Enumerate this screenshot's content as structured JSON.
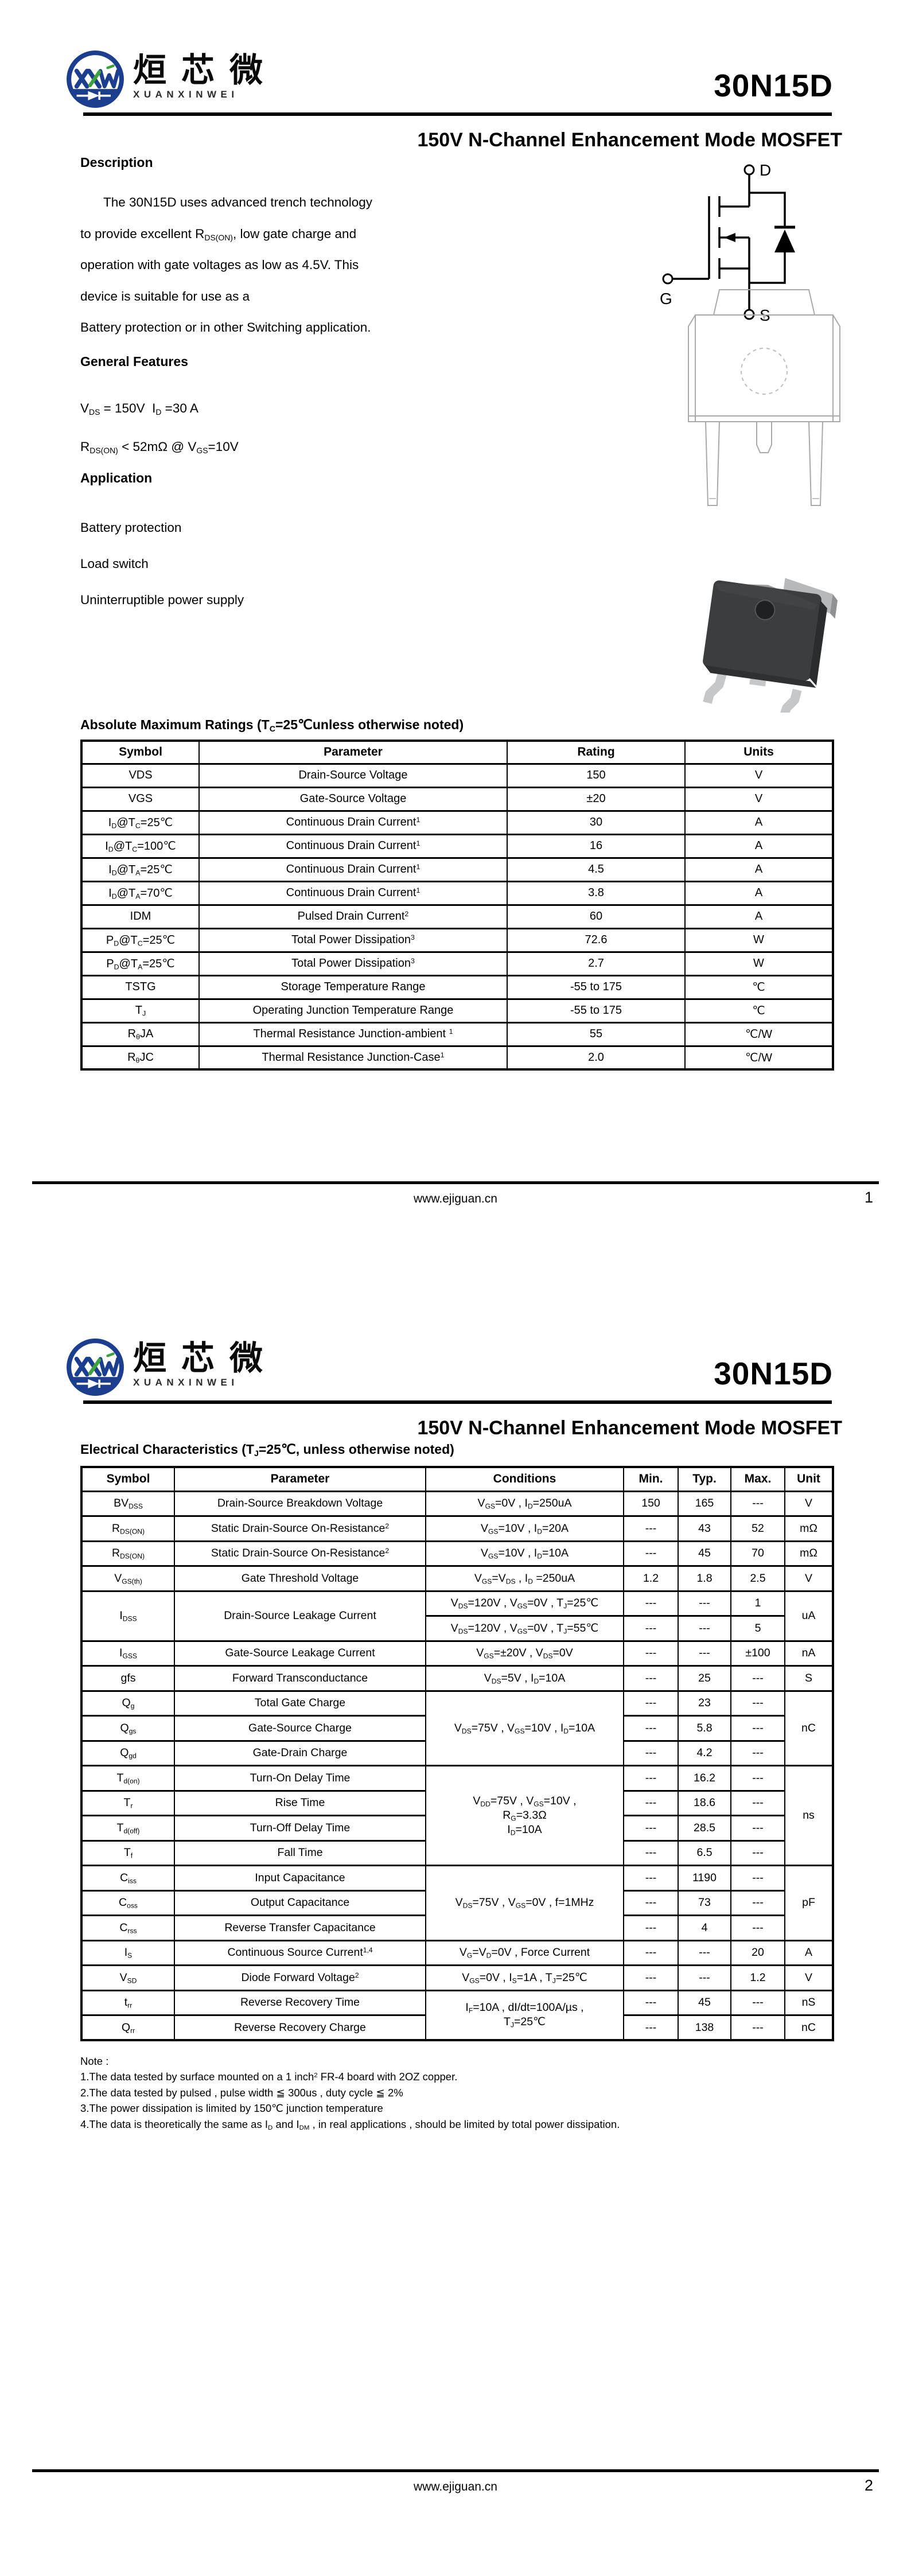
{
  "brand": {
    "logo_monogram": "XXW",
    "logo_zh": "烜芯微",
    "logo_en": "XUANXINWEI",
    "logo_blue": "#1c3e8e",
    "logo_green": "#3da23d"
  },
  "doc": {
    "part_number": "30N15D",
    "subtitle": "150V N-Channel Enhancement Mode MOSFET",
    "website": "www.ejiguan.cn"
  },
  "page1": {
    "page_number": "1",
    "description": {
      "heading": "Description",
      "lines": [
        "The  30N15D uses advanced trench technology",
        "to provide excellent R<sub>DS(ON)</sub>, low gate charge and",
        "operation with gate voltages as low as 4.5V. This",
        "device is suitable for use as a",
        "Battery protection or in other Switching application."
      ]
    },
    "features": {
      "heading": "General Features",
      "lines": [
        "V<sub>DS</sub> = 150V&nbsp;&nbsp;I<sub>D</sub> =30 A",
        "R<sub>DS(ON)</sub> &lt; 52mΩ @ V<sub>GS</sub>=10V"
      ]
    },
    "application": {
      "heading": "Application",
      "lines": [
        "Battery protection",
        "Load switch",
        "Uninterruptible power supply"
      ]
    },
    "schematic": {
      "drain_label": "D",
      "gate_label": "G",
      "source_label": "S"
    },
    "amr": {
      "heading": "Absolute Maximum Ratings (T<sub>C</sub>=25℃unless otherwise noted)",
      "headers": [
        "Symbol",
        "Parameter",
        "Rating",
        "Units"
      ],
      "rows": [
        {
          "symbol": "VDS",
          "parameter": "Drain-Source Voltage",
          "rating": "150",
          "units": "V"
        },
        {
          "symbol": "VGS",
          "parameter": "Gate-Source Voltage",
          "rating": "±20",
          "units": "V"
        },
        {
          "symbol": "I<sub>D</sub>@T<sub>C</sub>=25℃",
          "parameter": "Continuous Drain Current<sup>1</sup>",
          "rating": "30",
          "units": "A"
        },
        {
          "symbol": "I<sub>D</sub>@T<sub>C</sub>=100℃",
          "parameter": "Continuous Drain Current<sup>1</sup>",
          "rating": "16",
          "units": "A"
        },
        {
          "symbol": "I<sub>D</sub>@T<sub>A</sub>=25℃",
          "parameter": "Continuous Drain Current<sup>1</sup>",
          "rating": "4.5",
          "units": "A"
        },
        {
          "symbol": "I<sub>D</sub>@T<sub>A</sub>=70℃",
          "parameter": "Continuous Drain Current<sup>1</sup>",
          "rating": "3.8",
          "units": "A"
        },
        {
          "symbol": "IDM",
          "parameter": "Pulsed Drain Current<sup>2</sup>",
          "rating": "60",
          "units": "A"
        },
        {
          "symbol": "P<sub>D</sub>@T<sub>C</sub>=25℃",
          "parameter": "Total Power Dissipation<sup>3</sup>",
          "rating": "72.6",
          "units": "W"
        },
        {
          "symbol": "P<sub>D</sub>@T<sub>A</sub>=25℃",
          "parameter": "Total Power Dissipation<sup>3</sup>",
          "rating": "2.7",
          "units": "W"
        },
        {
          "symbol": "TSTG",
          "parameter": "Storage Temperature Range",
          "rating": "-55 to 175",
          "units": "℃"
        },
        {
          "symbol": "T<sub>J</sub>",
          "parameter": "Operating Junction Temperature Range",
          "rating": "-55 to 175",
          "units": "℃"
        },
        {
          "symbol": "R<sub>θ</sub>JA",
          "parameter": "Thermal Resistance Junction-ambient <sup>1</sup>",
          "rating": "55",
          "units": "℃/W"
        },
        {
          "symbol": "R<sub>θ</sub>JC",
          "parameter": "Thermal Resistance Junction-Case<sup>1</sup>",
          "rating": "2.0",
          "units": "℃/W"
        }
      ]
    }
  },
  "page2": {
    "page_number": "2",
    "ec": {
      "heading": "Electrical Characteristics (T<sub>J</sub>=25℃, unless otherwise noted)",
      "headers": [
        "Symbol",
        "Parameter",
        "Conditions",
        "Min.",
        "Typ.",
        "Max.",
        "Unit"
      ],
      "rows": [
        {
          "symbol": "BV<sub>DSS</sub>",
          "parameter": "Drain-Source Breakdown Voltage",
          "conditions": "V<sub>GS</sub>=0V , I<sub>D</sub>=250uA",
          "min": "150",
          "typ": "165",
          "max": "---",
          "unit": "V"
        },
        {
          "symbol": "R<sub>DS(ON)</sub>",
          "parameter": "Static Drain-Source On-Resistance<sup>2</sup>",
          "conditions": "V<sub>GS</sub>=10V , I<sub>D</sub>=20A",
          "min": "---",
          "typ": "43",
          "max": "52",
          "unit": "mΩ"
        },
        {
          "symbol": "R<sub>DS(ON)</sub>",
          "parameter": "Static Drain-Source On-Resistance<sup>2</sup>",
          "conditions": "V<sub>GS</sub>=10V , I<sub>D</sub>=10A",
          "min": "---",
          "typ": "45",
          "max": "70",
          "unit": "mΩ"
        },
        {
          "symbol": "V<sub>GS(th)</sub>",
          "parameter": "Gate Threshold Voltage",
          "conditions": "V<sub>GS</sub>=V<sub>DS</sub> , I<sub>D</sub> =250uA",
          "min": "1.2",
          "typ": "1.8",
          "max": "2.5",
          "unit": "V"
        },
        {
          "symbol": "I<sub>DSS</sub>",
          "parameter": "Drain-Source Leakage Current",
          "conditions": "V<sub>DS</sub>=120V , V<sub>GS</sub>=0V , T<sub>J</sub>=25℃",
          "min": "---",
          "typ": "---",
          "max": "1",
          "unit": "uA"
        },
        {
          "conditions": "V<sub>DS</sub>=120V , V<sub>GS</sub>=0V , T<sub>J</sub>=55℃",
          "min": "---",
          "typ": "---",
          "max": "5"
        },
        {
          "symbol": "I<sub>GSS</sub>",
          "parameter": "Gate-Source Leakage Current",
          "conditions": "V<sub>GS</sub>=±20V , V<sub>DS</sub>=0V",
          "min": "---",
          "typ": "---",
          "max": "±100",
          "unit": "nA"
        },
        {
          "symbol": "gfs",
          "parameter": "Forward Transconductance",
          "conditions": "V<sub>DS</sub>=5V , I<sub>D</sub>=10A",
          "min": "---",
          "typ": "25",
          "max": "---",
          "unit": "S"
        },
        {
          "symbol": "Q<sub>g</sub>",
          "parameter": "Total Gate Charge",
          "conditions": "V<sub>DS</sub>=75V , V<sub>GS</sub>=10V , I<sub>D</sub>=10A",
          "min": "---",
          "typ": "23",
          "max": "---",
          "unit": "nC"
        },
        {
          "symbol": "Q<sub>gs</sub>",
          "parameter": "Gate-Source Charge",
          "min": "---",
          "typ": "5.8",
          "max": "---"
        },
        {
          "symbol": "Q<sub>gd</sub>",
          "parameter": "Gate-Drain Charge",
          "min": "---",
          "typ": "4.2",
          "max": "---"
        },
        {
          "symbol": "T<sub>d(on)</sub>",
          "parameter": "Turn-On Delay Time",
          "conditions": "V<sub>DD</sub>=75V , V<sub>GS</sub>=10V ,<br>R<sub>G</sub>=3.3Ω<br>I<sub>D</sub>=10A",
          "min": "---",
          "typ": "16.2",
          "max": "---",
          "unit": "ns"
        },
        {
          "symbol": "T<sub>r</sub>",
          "parameter": "Rise Time",
          "min": "---",
          "typ": "18.6",
          "max": "---"
        },
        {
          "symbol": "T<sub>d(off)</sub>",
          "parameter": "Turn-Off Delay Time",
          "min": "---",
          "typ": "28.5",
          "max": "---"
        },
        {
          "symbol": "T<sub>f</sub>",
          "parameter": "Fall Time",
          "min": "---",
          "typ": "6.5",
          "max": "---"
        },
        {
          "symbol": "C<sub>iss</sub>",
          "parameter": "Input Capacitance",
          "conditions": "V<sub>DS</sub>=75V , V<sub>GS</sub>=0V , f=1MHz",
          "min": "---",
          "typ": "1190",
          "max": "---",
          "unit": "pF"
        },
        {
          "symbol": "C<sub>oss</sub>",
          "parameter": "Output Capacitance",
          "min": "---",
          "typ": "73",
          "max": "---"
        },
        {
          "symbol": "C<sub>rss</sub>",
          "parameter": "Reverse Transfer Capacitance",
          "min": "---",
          "typ": "4",
          "max": "---"
        },
        {
          "symbol": "I<sub>S</sub>",
          "parameter": "Continuous Source Current<sup>1,4</sup>",
          "conditions": "V<sub>G</sub>=V<sub>D</sub>=0V , Force Current",
          "min": "---",
          "typ": "---",
          "max": "20",
          "unit": "A"
        },
        {
          "symbol": "V<sub>SD</sub>",
          "parameter": "Diode Forward Voltage<sup>2</sup>",
          "conditions": "V<sub>GS</sub>=0V , I<sub>S</sub>=1A , T<sub>J</sub>=25℃",
          "min": "---",
          "typ": "---",
          "max": "1.2",
          "unit": "V"
        },
        {
          "symbol": "t<sub>rr</sub>",
          "parameter": "Reverse Recovery Time",
          "conditions": "I<sub>F</sub>=10A , dI/dt=100A/µs ,<br>T<sub>J</sub>=25℃",
          "min": "---",
          "typ": "45",
          "max": "---",
          "unit": "nS"
        },
        {
          "symbol": "Q<sub>rr</sub>",
          "parameter": "Reverse Recovery Charge",
          "min": "---",
          "typ": "138",
          "max": "---",
          "unit": "nC"
        }
      ]
    },
    "notes": {
      "heading": "Note :",
      "lines": [
        "1.The data tested by surface mounted on a 1 inch<sup>2</sup> FR-4 board with 2OZ copper.",
        "2.The data tested by pulsed , pulse width ≦ 300us , duty cycle ≦ 2%",
        "3.The power dissipation is limited by 150℃  junction temperature",
        "4.The data is theoretically the same as I<sub>D</sub> and I<sub>DM</sub> , in real applications , should be limited by total power dissipation."
      ]
    }
  }
}
